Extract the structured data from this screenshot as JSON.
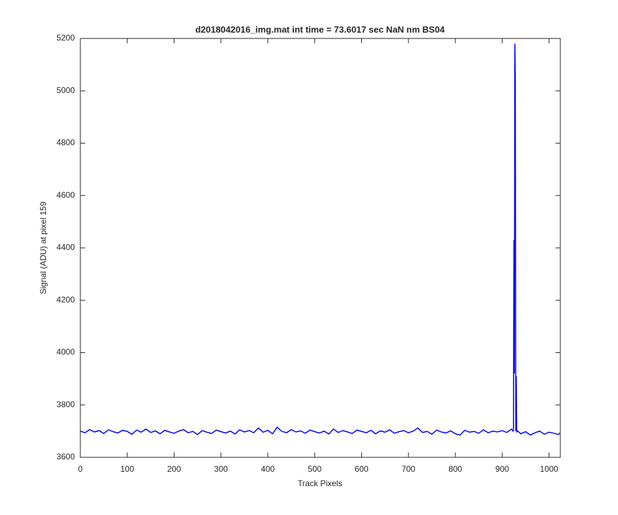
{
  "chart_data": {
    "type": "line",
    "title": "d2018042016_img.mat int time = 73.6017 sec  NaN nm BS04",
    "x_label": "Track Pixels",
    "y_label": "Signal (ADU) at pixel 159",
    "xlim": [
      0,
      1024
    ],
    "ylim": [
      3600,
      5200
    ],
    "xticks": [
      0,
      100,
      200,
      300,
      400,
      500,
      600,
      700,
      800,
      900,
      1000
    ],
    "yticks": [
      3600,
      3800,
      4000,
      4200,
      4400,
      4600,
      4800,
      5000,
      5200
    ],
    "grid": false,
    "series": [
      {
        "color": "#0000ff",
        "x": [
          0,
          10,
          20,
          30,
          40,
          50,
          60,
          70,
          80,
          90,
          100,
          110,
          120,
          130,
          140,
          150,
          160,
          170,
          180,
          190,
          200,
          210,
          220,
          230,
          240,
          250,
          260,
          270,
          280,
          290,
          300,
          310,
          320,
          330,
          340,
          350,
          360,
          370,
          380,
          390,
          400,
          410,
          420,
          430,
          440,
          450,
          460,
          470,
          480,
          490,
          500,
          510,
          520,
          530,
          540,
          550,
          560,
          570,
          580,
          590,
          600,
          610,
          620,
          630,
          640,
          650,
          660,
          670,
          680,
          690,
          700,
          710,
          720,
          730,
          740,
          750,
          760,
          770,
          780,
          790,
          800,
          810,
          820,
          830,
          840,
          850,
          860,
          870,
          880,
          890,
          900,
          910,
          920,
          923,
          924,
          925,
          926,
          927,
          928,
          929,
          930,
          931,
          932,
          940,
          950,
          960,
          970,
          980,
          990,
          1000,
          1010,
          1020,
          1023
        ],
        "values": [
          3700,
          3694,
          3706,
          3697,
          3702,
          3691,
          3705,
          3698,
          3693,
          3703,
          3699,
          3688,
          3704,
          3696,
          3708,
          3695,
          3701,
          3690,
          3703,
          3697,
          3692,
          3700,
          3706,
          3694,
          3699,
          3687,
          3702,
          3696,
          3691,
          3704,
          3698,
          3693,
          3700,
          3689,
          3705,
          3697,
          3702,
          3694,
          3712,
          3696,
          3703,
          3690,
          3715,
          3699,
          3694,
          3706,
          3697,
          3701,
          3692,
          3704,
          3698,
          3693,
          3700,
          3689,
          3708,
          3695,
          3702,
          3697,
          3691,
          3704,
          3699,
          3694,
          3703,
          3690,
          3701,
          3696,
          3705,
          3692,
          3698,
          3702,
          3694,
          3700,
          3712,
          3695,
          3699,
          3688,
          3704,
          3697,
          3693,
          3701,
          3690,
          3685,
          3703,
          3696,
          3699,
          3692,
          3705,
          3694,
          3700,
          3697,
          3702,
          3695,
          3708,
          3700,
          3705,
          4430,
          3920,
          5180,
          5030,
          3700,
          3910,
          3695,
          3702,
          3690,
          3698,
          3685,
          3694,
          3700,
          3688,
          3696,
          3692,
          3687,
          3693
        ]
      }
    ]
  }
}
